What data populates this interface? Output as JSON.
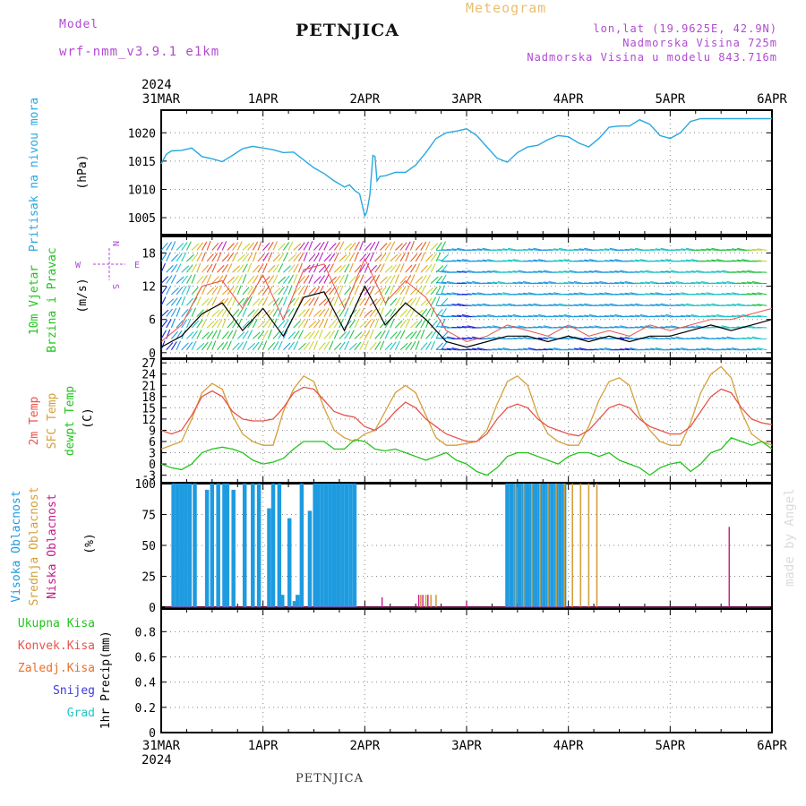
{
  "header": {
    "model_label": "Model",
    "model_name": "wrf-nmm_v3.9.1 e1km",
    "title": "PETNJICA",
    "subtitle": "Meteogram",
    "lonlat": "lon,lat (19.9625E, 42.9N)",
    "elevation": "Nadmorska Visina 725m",
    "model_elevation": "Nadmorska Visina u modelu 843.716m"
  },
  "footer": {
    "station": "PETNJICA",
    "watermark": "made by Angel"
  },
  "colors": {
    "pressure": "#29a8e0",
    "temp2m": "#e8534a",
    "sfc": "#d4a03a",
    "dew": "#22c41c",
    "high_cloud": "#1e9be0",
    "mid_cloud": "#d4a03a",
    "low_cloud": "#c81a8a",
    "purple": "#b04ad0",
    "grid": "#888888"
  },
  "chart_data": [
    {
      "type": "line",
      "panel": "pressure",
      "ylabel_1": "Pritisak na nivou mora",
      "ylabel_2": "(hPa)",
      "yticks": [
        "1005",
        "1010",
        "1015",
        "1020"
      ],
      "ylim": [
        1002,
        1024
      ],
      "x_start_label": "31MAR",
      "x_year": "2024",
      "x_tick_labels": [
        "31MAR",
        "1APR",
        "2APR",
        "3APR",
        "4APR",
        "5APR",
        "6APR"
      ],
      "x": [
        0,
        0.05,
        0.1,
        0.2,
        0.3,
        0.4,
        0.5,
        0.6,
        0.7,
        0.8,
        0.9,
        1.0,
        1.1,
        1.2,
        1.3,
        1.4,
        1.5,
        1.6,
        1.7,
        1.8,
        1.85,
        1.9,
        1.95,
        2.0,
        2.02,
        2.05,
        2.08,
        2.1,
        2.12,
        2.15,
        2.2,
        2.3,
        2.4,
        2.5,
        2.6,
        2.7,
        2.8,
        2.9,
        3.0,
        3.1,
        3.2,
        3.3,
        3.4,
        3.5,
        3.6,
        3.7,
        3.8,
        3.9,
        4.0,
        4.1,
        4.2,
        4.3,
        4.4,
        4.5,
        4.6,
        4.7,
        4.8,
        4.9,
        5.0,
        5.1,
        5.2,
        5.3,
        5.4,
        5.5,
        5.6,
        5.7,
        5.8,
        5.9,
        6.0
      ],
      "series": [
        {
          "values": [
            1014.5,
            1016.2,
            1016.8,
            1016.9,
            1017.3,
            1015.8,
            1015.4,
            1014.9,
            1016.0,
            1017.2,
            1017.6,
            1017.3,
            1017.0,
            1016.5,
            1016.6,
            1015.2,
            1013.8,
            1012.8,
            1011.5,
            1010.4,
            1010.8,
            1009.8,
            1009.2,
            1005.3,
            1006.0,
            1009.0,
            1016.0,
            1015.8,
            1011.5,
            1012.3,
            1012.4,
            1013.0,
            1013.0,
            1014.3,
            1016.5,
            1019.0,
            1020.0,
            1020.3,
            1020.7,
            1019.5,
            1017.5,
            1015.5,
            1014.8,
            1016.5,
            1017.5,
            1017.8,
            1018.8,
            1019.5,
            1019.3,
            1018.2,
            1017.5,
            1019.0,
            1021.0,
            1021.2,
            1021.2,
            1022.3,
            1021.5,
            1019.5,
            1019.0,
            1020.0,
            1022.0,
            1022.5,
            1022.5,
            1022.5,
            1022.5,
            1022.5,
            1022.5,
            1022.5,
            1022.5
          ]
        }
      ]
    },
    {
      "type": "line",
      "panel": "wind",
      "ylabel_1": "10m Vjetar",
      "ylabel_2": "Brzina i Pravac",
      "ylabel_3": "(m/s)",
      "compass_n": "N",
      "compass_s": "S",
      "compass_w": "W",
      "compass_e": "E",
      "yticks": [
        "0",
        "6",
        "12",
        "18"
      ],
      "ylim": [
        -1,
        21
      ],
      "x": [
        0,
        0.2,
        0.4,
        0.6,
        0.8,
        1.0,
        1.2,
        1.4,
        1.6,
        1.8,
        2.0,
        2.2,
        2.4,
        2.6,
        2.8,
        3.0,
        3.2,
        3.4,
        3.6,
        3.8,
        4.0,
        4.2,
        4.4,
        4.6,
        4.8,
        5.0,
        5.2,
        5.4,
        5.6,
        5.8,
        6.0
      ],
      "series": [
        {
          "name": "speed",
          "values": [
            1,
            3,
            7,
            9,
            4,
            8,
            3,
            10,
            11,
            4,
            12,
            5,
            9,
            6,
            2,
            1,
            2,
            3,
            3,
            2,
            3,
            2,
            3,
            2,
            3,
            3,
            4,
            5,
            4,
            5,
            6
          ]
        },
        {
          "name": "gust",
          "values": [
            2,
            5,
            12,
            13,
            8,
            14,
            6,
            15,
            16,
            8,
            17,
            9,
            13,
            10,
            4,
            2,
            3,
            5,
            4,
            3,
            5,
            3,
            4,
            3,
            5,
            4,
            5,
            6,
            6,
            7,
            8
          ]
        }
      ]
    },
    {
      "type": "line",
      "panel": "temperature",
      "ylabel_1": "2m Temp",
      "ylabel_2": "SFC Temp",
      "ylabel_3": "dewpt Temp",
      "ylabel_4": "(C)",
      "yticks": [
        "-3",
        "0",
        "3",
        "6",
        "9",
        "12",
        "15",
        "18",
        "21",
        "24",
        "27"
      ],
      "ylim": [
        -5,
        28
      ],
      "x": [
        0,
        0.1,
        0.2,
        0.3,
        0.4,
        0.5,
        0.6,
        0.7,
        0.8,
        0.9,
        1.0,
        1.1,
        1.2,
        1.3,
        1.4,
        1.5,
        1.6,
        1.7,
        1.8,
        1.9,
        2.0,
        2.1,
        2.2,
        2.3,
        2.4,
        2.5,
        2.6,
        2.7,
        2.8,
        2.9,
        3.0,
        3.1,
        3.2,
        3.3,
        3.4,
        3.5,
        3.6,
        3.7,
        3.8,
        3.9,
        4.0,
        4.1,
        4.2,
        4.3,
        4.4,
        4.5,
        4.6,
        4.7,
        4.8,
        4.9,
        5.0,
        5.1,
        5.2,
        5.3,
        5.4,
        5.5,
        5.6,
        5.7,
        5.8,
        5.9,
        6.0
      ],
      "series": [
        {
          "name": "2m",
          "values": [
            9,
            8,
            9,
            13,
            18,
            19.5,
            18,
            14,
            12,
            11.5,
            11.5,
            12,
            15,
            19,
            20.5,
            20,
            17,
            14,
            13,
            12.5,
            10,
            9,
            11,
            14,
            16.5,
            15,
            12,
            10,
            8,
            7,
            6,
            6,
            8,
            12,
            15,
            16,
            15,
            12,
            10,
            9,
            8,
            7.5,
            9,
            12,
            15,
            16,
            15,
            12,
            10,
            9,
            8,
            8,
            10,
            14,
            18,
            20,
            19,
            15,
            12,
            11,
            10.5
          ]
        },
        {
          "name": "sfc",
          "values": [
            4,
            5,
            6,
            12,
            19,
            21.5,
            20,
            13,
            8,
            6,
            5,
            5,
            14,
            20,
            23.5,
            22,
            15,
            9,
            7,
            6,
            8,
            9,
            14,
            19,
            21,
            19,
            13,
            7,
            5,
            5,
            5.5,
            6,
            9,
            16,
            22,
            23.5,
            21,
            13,
            8,
            6,
            5,
            5,
            10,
            17,
            22,
            23,
            21,
            13,
            9,
            6,
            5,
            5,
            11,
            19,
            24,
            26,
            23,
            14,
            8,
            6,
            5
          ]
        },
        {
          "name": "dew",
          "values": [
            0,
            -1,
            -1.5,
            0,
            3,
            4,
            4.5,
            4,
            3,
            1,
            0,
            0.5,
            1.5,
            4,
            6,
            6,
            6,
            4,
            4,
            6.5,
            6,
            4,
            3.5,
            4,
            3,
            2,
            1,
            2,
            3,
            1,
            0,
            -2,
            -3,
            -1,
            2,
            3,
            3,
            2,
            1,
            0,
            2,
            3,
            3,
            2,
            3,
            1,
            0,
            -1,
            -3,
            -1,
            0,
            0.5,
            -2,
            0,
            3,
            4,
            7,
            6,
            5,
            6,
            4
          ]
        }
      ]
    },
    {
      "type": "bar",
      "panel": "clouds",
      "ylabel_1": "Visoka Oblacnost",
      "ylabel_2": "Srednja Oblacnost",
      "ylabel_3": "Niska Oblacnost",
      "ylabel_4": "(%)",
      "yticks": [
        "0",
        "25",
        "50",
        "75",
        "100"
      ],
      "ylim": [
        0,
        100
      ],
      "series": [
        {
          "name": "high",
          "x": [
            0.12,
            0.16,
            0.2,
            0.24,
            0.28,
            0.33,
            0.45,
            0.5,
            0.56,
            0.62,
            0.65,
            0.71,
            0.82,
            0.9,
            0.96,
            1.06,
            1.1,
            1.16,
            1.19,
            1.26,
            1.31,
            1.34,
            1.38,
            1.46,
            1.51,
            1.54,
            1.58,
            1.62,
            1.66,
            1.7,
            1.74,
            1.78,
            1.82,
            1.86,
            1.9,
            3.4,
            3.44,
            3.48,
            3.52,
            3.56,
            3.6,
            3.64,
            3.68,
            3.72,
            3.76,
            3.8,
            3.84,
            3.88,
            3.92,
            3.96
          ],
          "values": [
            100,
            100,
            100,
            100,
            100,
            100,
            95,
            100,
            100,
            100,
            100,
            95,
            100,
            100,
            100,
            80,
            100,
            100,
            10,
            72,
            5,
            10,
            100,
            78,
            100,
            100,
            100,
            100,
            100,
            100,
            100,
            100,
            100,
            100,
            100,
            100,
            100,
            100,
            100,
            100,
            100,
            100,
            100,
            100,
            100,
            100,
            100,
            100,
            100,
            100
          ]
        },
        {
          "name": "mid",
          "x": [
            2.55,
            2.6,
            2.65,
            2.7,
            3.48,
            3.56,
            3.64,
            3.72,
            3.8,
            3.88,
            3.96,
            4.04,
            4.12,
            4.2,
            4.28
          ],
          "values": [
            10,
            10,
            10,
            10,
            100,
            100,
            100,
            100,
            100,
            100,
            100,
            100,
            100,
            100,
            100
          ]
        },
        {
          "name": "low",
          "x": [
            2.17,
            2.53,
            2.57,
            2.62,
            3.0,
            5.58
          ],
          "values": [
            8,
            10,
            10,
            10,
            5,
            65
          ]
        }
      ]
    },
    {
      "type": "bar",
      "panel": "precipitation",
      "ylabel_1": "1hr Precip",
      "ylabel_2": "(mm)",
      "legend": [
        "Ukupna Kisa",
        "Konvek.Kisa",
        "Zaledj.Kisa",
        "Snijeg",
        "Grad"
      ],
      "yticks": [
        "0",
        "0.2",
        "0.4",
        "0.6",
        "0.8"
      ],
      "ylim": [
        0,
        0.98
      ],
      "x_tick_labels": [
        "31MAR",
        "1APR",
        "2APR",
        "3APR",
        "4APR",
        "5APR",
        "6APR"
      ],
      "x_year": "2024",
      "values": []
    }
  ]
}
